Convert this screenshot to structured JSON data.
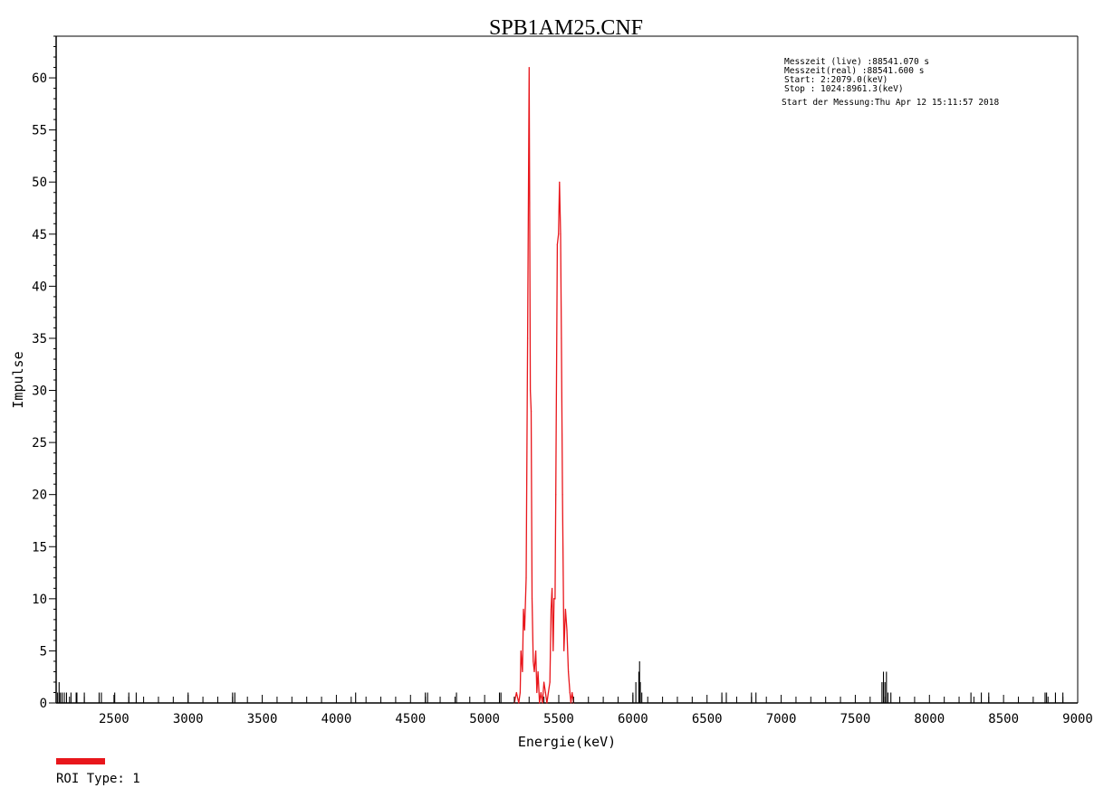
{
  "chart_data": {
    "type": "line",
    "title": "SPB1AM25.CNF",
    "xlabel": "Energie(keV)",
    "ylabel": "Impulse",
    "xlim": [
      2110,
      9000
    ],
    "ylim": [
      0,
      64
    ],
    "x_ticks": [
      "2500",
      "3000",
      "3500",
      "4000",
      "4500",
      "5000",
      "5500",
      "6000",
      "6500",
      "7000",
      "7500",
      "8000",
      "8500",
      "9000"
    ],
    "y_ticks": [
      "0",
      "5",
      "10",
      "15",
      "20",
      "25",
      "30",
      "35",
      "40",
      "45",
      "50",
      "55",
      "60"
    ],
    "grid": false,
    "colors": {
      "background": "#ffffff",
      "axis": "#000000",
      "spectrum": "#000000",
      "roi": "#e8161b"
    },
    "series": [
      {
        "role": "spectrum",
        "x": [
          2120,
          2130,
          2138,
          2150,
          2165,
          2180,
          2210,
          2245,
          2250,
          2300,
          2400,
          2415,
          2505,
          2600,
          2650,
          3000,
          3300,
          3315,
          4130,
          4600,
          4615,
          4810,
          5100,
          5110,
          6000,
          6020,
          6040,
          6045,
          6050,
          6060,
          6600,
          6630,
          6800,
          6830,
          7680,
          7690,
          7700,
          7710,
          7720,
          7740,
          8280,
          8350,
          8400,
          8780,
          8790,
          8850,
          8900
        ],
        "y": [
          1,
          2,
          1,
          1,
          1,
          1,
          1,
          1,
          1,
          1,
          1,
          1,
          1,
          1,
          1,
          1,
          1,
          1,
          1,
          1,
          1,
          1,
          1,
          1,
          1,
          2,
          3,
          4,
          2,
          1,
          1,
          1,
          1,
          1,
          2,
          3,
          2,
          3,
          1,
          1,
          1,
          1,
          1,
          1,
          1,
          1,
          1
        ]
      },
      {
        "role": "roi",
        "name": "ROI Type: 1",
        "x": [
          5200,
          5215,
          5230,
          5240,
          5245,
          5255,
          5262,
          5270,
          5280,
          5290,
          5300,
          5308,
          5314,
          5320,
          5328,
          5335,
          5345,
          5352,
          5360,
          5370,
          5380,
          5390,
          5400,
          5410,
          5420,
          5430,
          5440,
          5448,
          5455,
          5462,
          5468,
          5475,
          5480,
          5490,
          5498,
          5505,
          5512,
          5518,
          5525,
          5535,
          5545,
          5555,
          5565,
          5575,
          5582,
          5590,
          5600
        ],
        "y": [
          0,
          1,
          0,
          1,
          5,
          3,
          9,
          7,
          12,
          35,
          61,
          30,
          28,
          10,
          4,
          3,
          5,
          1,
          3,
          0,
          1,
          0,
          2,
          1,
          0,
          1,
          2,
          9,
          11,
          5,
          10,
          10,
          20,
          44,
          45,
          50,
          45,
          35,
          20,
          5,
          9,
          7,
          3,
          1,
          0,
          1,
          0
        ]
      }
    ],
    "legend": {
      "label": "ROI Type: 1",
      "color": "#e8161b",
      "placement": "bottom-left"
    },
    "info_box": {
      "placement": "top-right",
      "lines": [
        "Messzeit (live)  :88541.070 s",
        "Messzeit(real) :88541.600 s",
        "Start:    2:2079.0(keV)",
        "Stop : 1024:8961.3(keV)",
        "Start der Messung:Thu Apr 12 15:11:57 2018"
      ]
    }
  }
}
